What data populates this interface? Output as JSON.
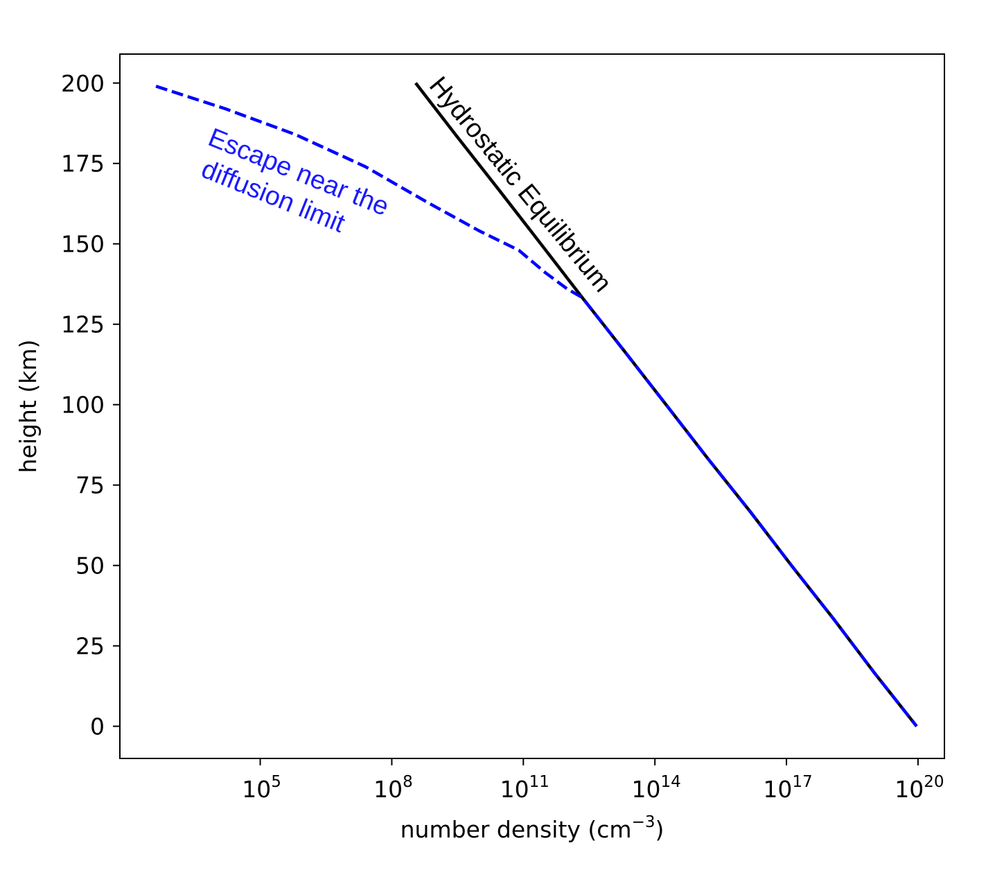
{
  "chart_data": {
    "type": "line",
    "title": "",
    "xlabel": "number density (cm",
    "xlabel_sup": "−3",
    "xlabel_suffix": ")",
    "ylabel": "height (km)",
    "x_scale": "log",
    "xlim": [
      63.0,
      4e+20
    ],
    "ylim": [
      -10,
      209
    ],
    "xticks": [
      {
        "value": 100000.0,
        "base": "10",
        "exp": "5"
      },
      {
        "value": 100000000.0,
        "base": "10",
        "exp": "8"
      },
      {
        "value": 100000000000.0,
        "base": "10",
        "exp": "11"
      },
      {
        "value": 100000000000000.0,
        "base": "10",
        "exp": "14"
      },
      {
        "value": 1e+17,
        "base": "10",
        "exp": "17"
      },
      {
        "value": 1e+20,
        "base": "10",
        "exp": "20"
      }
    ],
    "yticks": [
      0,
      25,
      50,
      75,
      100,
      125,
      150,
      175,
      200
    ],
    "grid": false,
    "series": [
      {
        "color": "#000000",
        "style": "solid",
        "x": [
          350000000.0,
          3100000000.0,
          28000000000.0,
          250000000000.0,
          2200000000000.0,
          20000000000000.0,
          180000000000000.0,
          1600000000000000.0,
          1.5e+16,
          1.3e+17,
          1.2e+18,
          1e+19,
          9.3e+19
        ],
        "y": [
          200,
          183.3,
          166.7,
          150,
          133.3,
          116.7,
          100,
          83.3,
          66.7,
          50,
          33.3,
          16.7,
          0
        ]
      },
      {
        "color": "#0000ff",
        "style": "dashed",
        "x": [
          420.0,
          16000.0,
          630000.0,
          25000000.0,
          630000000.0,
          10000000000.0,
          79000000000.0,
          320000000000.0,
          1000000000000.0,
          2200000000000.0,
          20000000000000.0,
          180000000000000.0,
          1600000000000000.0,
          1.5e+16,
          1.3e+17,
          1.2e+18,
          1e+19,
          9.3e+19
        ],
        "y": [
          199,
          192,
          184,
          174,
          163,
          154,
          148,
          141,
          136,
          133.3,
          116.7,
          100,
          83.3,
          66.7,
          50,
          33.3,
          16.7,
          0
        ]
      }
    ],
    "annotations": [
      {
        "lines": [
          "Escape near the",
          "diffusion limit"
        ],
        "color": "#1a1aff"
      },
      {
        "lines": [
          "Hydrostatic Equilibrium"
        ],
        "color": "#000000"
      }
    ]
  }
}
